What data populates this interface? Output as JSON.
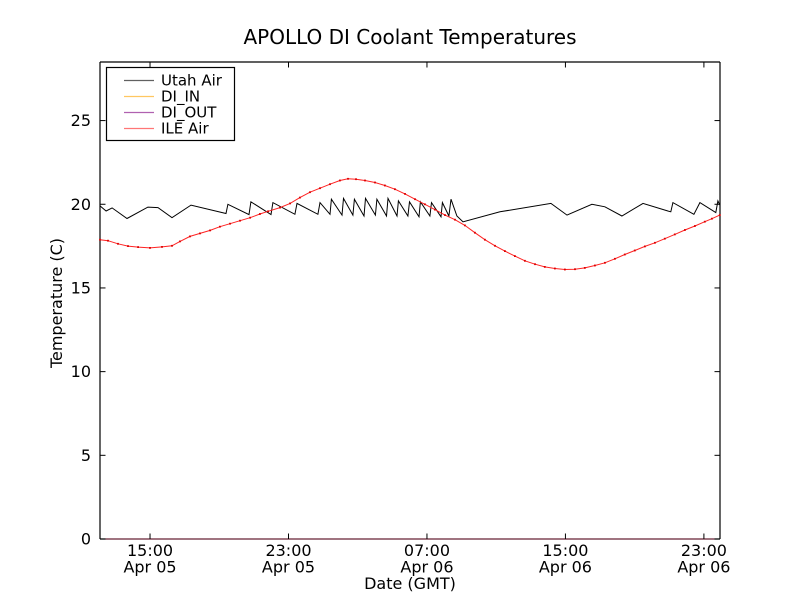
{
  "chart_data": {
    "type": "line",
    "title": "APOLLO DI Coolant Temperatures",
    "xlabel": "Date (GMT)",
    "ylabel": "Temperature (C)",
    "grid": false,
    "legend_position": "upper-left",
    "x_unit": "hours since Apr 05 12:00 GMT",
    "xlim": [
      0.11,
      35.93
    ],
    "ylim": [
      0,
      28.5
    ],
    "y_ticks": [
      0,
      5,
      10,
      15,
      20,
      25
    ],
    "x_ticks": [
      {
        "t": 3,
        "time": "15:00",
        "date": "Apr 05"
      },
      {
        "t": 11,
        "time": "23:00",
        "date": "Apr 05"
      },
      {
        "t": 19,
        "time": "07:00",
        "date": "Apr 06"
      },
      {
        "t": 27,
        "time": "15:00",
        "date": "Apr 06"
      },
      {
        "t": 35,
        "time": "23:00",
        "date": "Apr 06"
      }
    ],
    "legend": [
      "Utah Air",
      "DI_IN",
      "DI_OUT",
      "ILE Air"
    ],
    "series": [
      {
        "name": "Utah Air",
        "color": "#000000",
        "markers": false,
        "points": [
          [
            0.11,
            19.9
          ],
          [
            0.46,
            19.6
          ],
          [
            0.81,
            19.78
          ],
          [
            1.67,
            19.15
          ],
          [
            2.88,
            19.83
          ],
          [
            3.46,
            19.8
          ],
          [
            4.27,
            19.2
          ],
          [
            5.37,
            19.95
          ],
          [
            7.39,
            19.45
          ],
          [
            7.5,
            20.0
          ],
          [
            8.72,
            19.38
          ],
          [
            8.83,
            20.15
          ],
          [
            9.99,
            19.38
          ],
          [
            10.1,
            20.1
          ],
          [
            11.37,
            19.4
          ],
          [
            11.49,
            20.05
          ],
          [
            12.7,
            19.4
          ],
          [
            12.82,
            20.1
          ],
          [
            13.4,
            19.4
          ],
          [
            13.48,
            20.3
          ],
          [
            14.09,
            19.35
          ],
          [
            14.18,
            20.35
          ],
          [
            14.72,
            19.35
          ],
          [
            14.81,
            20.3
          ],
          [
            15.36,
            19.3
          ],
          [
            15.45,
            20.35
          ],
          [
            16.02,
            19.35
          ],
          [
            16.11,
            20.3
          ],
          [
            16.66,
            19.3
          ],
          [
            16.75,
            20.35
          ],
          [
            17.27,
            19.3
          ],
          [
            17.35,
            20.2
          ],
          [
            17.9,
            19.3
          ],
          [
            17.99,
            20.15
          ],
          [
            18.54,
            19.25
          ],
          [
            18.62,
            20.15
          ],
          [
            19.17,
            19.3
          ],
          [
            19.26,
            20.1
          ],
          [
            19.81,
            19.25
          ],
          [
            19.89,
            20.1
          ],
          [
            20.27,
            19.3
          ],
          [
            20.39,
            20.3
          ],
          [
            20.73,
            19.3
          ],
          [
            21.08,
            18.95
          ],
          [
            23.22,
            19.55
          ],
          [
            26.16,
            20.05
          ],
          [
            27.09,
            19.35
          ],
          [
            28.53,
            20.0
          ],
          [
            29.28,
            19.85
          ],
          [
            30.26,
            19.3
          ],
          [
            31.48,
            20.05
          ],
          [
            32.92,
            19.6
          ],
          [
            33.09,
            19.55
          ],
          [
            33.21,
            20.1
          ],
          [
            34.42,
            19.4
          ],
          [
            34.77,
            20.1
          ],
          [
            35.69,
            19.5
          ],
          [
            35.81,
            20.2
          ],
          [
            35.92,
            19.95
          ]
        ]
      },
      {
        "name": "DI_IN",
        "color": "#ffa500",
        "markers": false,
        "note": "flat at 0 C, lies along the bottom axis line",
        "points": [
          [
            0.11,
            0
          ],
          [
            35.92,
            0
          ]
        ]
      },
      {
        "name": "DI_OUT",
        "color": "#800080",
        "markers": false,
        "note": "flat at 0 C, lies along the bottom axis line",
        "points": [
          [
            0.11,
            0
          ],
          [
            35.92,
            0
          ]
        ]
      },
      {
        "name": "ILE Air",
        "color": "#ff2222",
        "markers": true,
        "points": [
          [
            0.11,
            17.88
          ],
          [
            0.57,
            17.82
          ],
          [
            1.15,
            17.64
          ],
          [
            1.73,
            17.5
          ],
          [
            2.31,
            17.44
          ],
          [
            3.0,
            17.39
          ],
          [
            3.69,
            17.45
          ],
          [
            4.27,
            17.52
          ],
          [
            4.73,
            17.78
          ],
          [
            5.31,
            18.08
          ],
          [
            5.89,
            18.26
          ],
          [
            6.47,
            18.44
          ],
          [
            7.04,
            18.66
          ],
          [
            7.62,
            18.84
          ],
          [
            8.2,
            19.02
          ],
          [
            8.78,
            19.2
          ],
          [
            9.35,
            19.42
          ],
          [
            9.82,
            19.58
          ],
          [
            10.51,
            19.8
          ],
          [
            11.09,
            20.05
          ],
          [
            11.66,
            20.4
          ],
          [
            12.24,
            20.72
          ],
          [
            12.82,
            20.96
          ],
          [
            13.4,
            21.2
          ],
          [
            13.97,
            21.42
          ],
          [
            14.44,
            21.52
          ],
          [
            14.9,
            21.5
          ],
          [
            15.42,
            21.42
          ],
          [
            16.0,
            21.3
          ],
          [
            16.57,
            21.12
          ],
          [
            17.15,
            20.9
          ],
          [
            17.73,
            20.62
          ],
          [
            18.31,
            20.3
          ],
          [
            18.88,
            20.0
          ],
          [
            19.46,
            19.68
          ],
          [
            20.04,
            19.35
          ],
          [
            20.62,
            19.08
          ],
          [
            21.19,
            18.74
          ],
          [
            21.77,
            18.3
          ],
          [
            22.35,
            17.88
          ],
          [
            22.93,
            17.52
          ],
          [
            23.5,
            17.2
          ],
          [
            24.08,
            16.9
          ],
          [
            24.66,
            16.62
          ],
          [
            25.24,
            16.42
          ],
          [
            25.81,
            16.26
          ],
          [
            26.39,
            16.16
          ],
          [
            26.97,
            16.1
          ],
          [
            27.55,
            16.12
          ],
          [
            28.12,
            16.2
          ],
          [
            28.7,
            16.34
          ],
          [
            29.28,
            16.5
          ],
          [
            29.86,
            16.74
          ],
          [
            30.43,
            17.0
          ],
          [
            31.01,
            17.24
          ],
          [
            31.59,
            17.48
          ],
          [
            32.17,
            17.7
          ],
          [
            32.74,
            17.94
          ],
          [
            33.32,
            18.2
          ],
          [
            33.9,
            18.46
          ],
          [
            34.48,
            18.7
          ],
          [
            35.05,
            18.96
          ],
          [
            35.46,
            19.14
          ],
          [
            35.92,
            19.35
          ]
        ]
      }
    ]
  }
}
